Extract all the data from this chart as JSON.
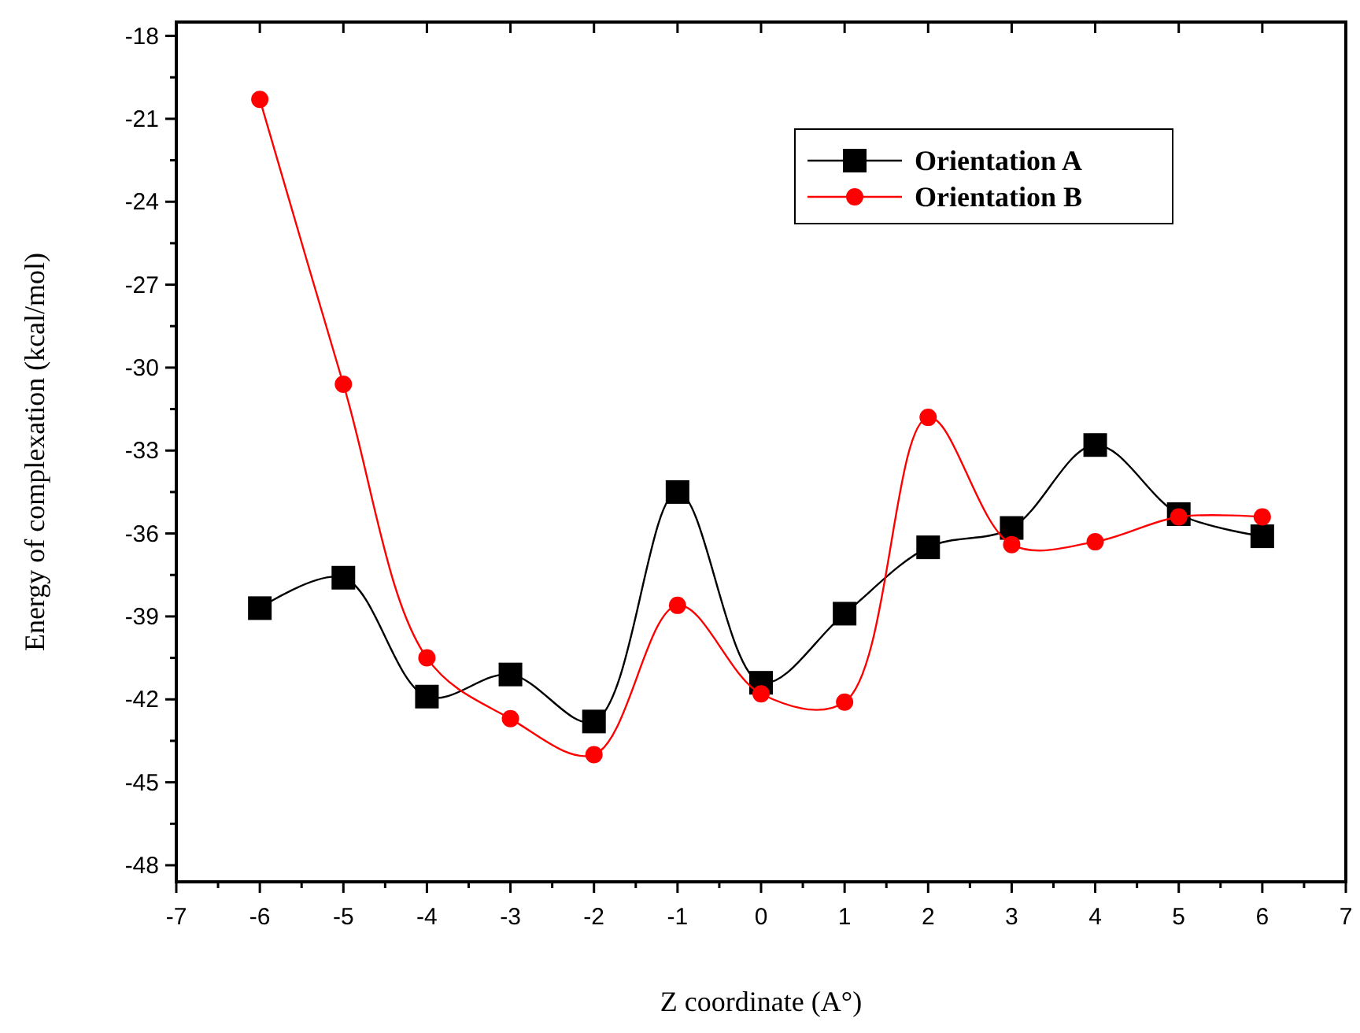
{
  "chart_data": {
    "type": "line",
    "xlabel": "Z coordinate (A°)",
    "ylabel": "Energy of complexation (kcal/mol)",
    "x": [
      -6,
      -5,
      -4,
      -3,
      -2,
      -1,
      0,
      1,
      2,
      3,
      4,
      5,
      6
    ],
    "xlim": [
      -7,
      7
    ],
    "xticks": [
      -7,
      -6,
      -5,
      -4,
      -3,
      -2,
      -1,
      0,
      1,
      2,
      3,
      4,
      5,
      6,
      7
    ],
    "ylim": [
      -48.6,
      -17.5
    ],
    "yticks": [
      -48,
      -45,
      -42,
      -39,
      -36,
      -33,
      -30,
      -27,
      -24,
      -21,
      -18
    ],
    "grid": false,
    "legend": "top right",
    "series": [
      {
        "name": "Orientation A",
        "color": "#000000",
        "marker": "square",
        "values": [
          -38.7,
          -37.6,
          -41.9,
          -41.1,
          -42.8,
          -34.5,
          -41.4,
          -38.9,
          -36.5,
          -35.8,
          -32.8,
          -35.3,
          -36.1
        ]
      },
      {
        "name": "Orientation B",
        "color": "#ff0000",
        "marker": "circle",
        "values": [
          -20.3,
          -30.6,
          -40.5,
          -42.7,
          -44.0,
          -38.6,
          -41.8,
          -42.1,
          -31.8,
          -36.4,
          -36.3,
          -35.4,
          -35.4
        ]
      }
    ]
  }
}
